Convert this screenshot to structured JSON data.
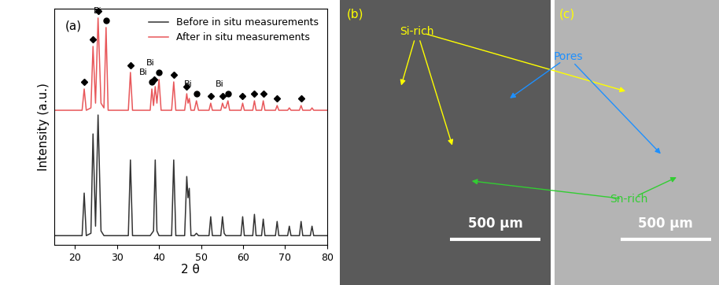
{
  "chart_data": {
    "type": "line",
    "panel_label": "(a)",
    "x_label": "2 θ",
    "y_label": "Intensity (a.u.)",
    "xlim": [
      15,
      80
    ],
    "xticks": [
      20,
      30,
      40,
      50,
      60,
      70,
      80
    ],
    "ylim": [
      0,
      100
    ],
    "tick_labels": "x",
    "legend": "upper right",
    "grid": false,
    "x": [
      15,
      21.7,
      22.2,
      22.7,
      23.8,
      24.3,
      24.9,
      25.5,
      26.2,
      26.9,
      27.4,
      27.9,
      32.7,
      33.2,
      33.7,
      37.9,
      38.3,
      38.7,
      39.1,
      39.5,
      40.0,
      40.5,
      43.0,
      43.5,
      44.0,
      46.1,
      46.6,
      46.9,
      47.2,
      47.6,
      48.4,
      48.9,
      49.4,
      51.9,
      52.3,
      52.7,
      54.7,
      55.1,
      55.5,
      55.9,
      56.4,
      56.8,
      59.5,
      59.9,
      60.3,
      62.3,
      62.7,
      63.1,
      64.4,
      64.8,
      65.2,
      67.7,
      68.1,
      68.5,
      70.6,
      71.0,
      71.4,
      73.4,
      73.8,
      74.2,
      76.0,
      76.4,
      76.8,
      80
    ],
    "series": [
      {
        "name": "Before in situ measurements",
        "color": "#333333",
        "line_style": "solid",
        "values": [
          4,
          4,
          22,
          4,
          5,
          47,
          8,
          55,
          6,
          4,
          4,
          4,
          4,
          36,
          4,
          4,
          5,
          6,
          36,
          6,
          4,
          4,
          4,
          36,
          4,
          4,
          29,
          20,
          24,
          4,
          4,
          5,
          4,
          4,
          12,
          4,
          4,
          12,
          5,
          4,
          4,
          4,
          4,
          12,
          4,
          4,
          13,
          4,
          4,
          11,
          4,
          4,
          10,
          4,
          4,
          8,
          4,
          4,
          10,
          4,
          4,
          8,
          4,
          4
        ]
      },
      {
        "name": "After in situ measurements",
        "color": "#e8575a",
        "line_style": "solid",
        "values": [
          57,
          57,
          66,
          57,
          58,
          84,
          60,
          96,
          60,
          58,
          92,
          57,
          57,
          73,
          57,
          57,
          66,
          59,
          67,
          60,
          70,
          57,
          57,
          69,
          57,
          57,
          64,
          60,
          62,
          57,
          57,
          61,
          57,
          57,
          60,
          57,
          57,
          60,
          58,
          58,
          61,
          57,
          57,
          60,
          57,
          57,
          61,
          57,
          57,
          61,
          57,
          57,
          59,
          57,
          57,
          58,
          57,
          57,
          59,
          57,
          57,
          58,
          57,
          57
        ]
      }
    ],
    "peak_marks": [
      {
        "marker": "diamond",
        "color": "#000000",
        "x": [
          22.2,
          24.3,
          25.5,
          33.2,
          38.9,
          43.5,
          46.6,
          52.3,
          55.1,
          59.9,
          62.7,
          64.8,
          68.1,
          73.8
        ],
        "y": [
          69,
          87,
          99,
          76,
          70,
          72,
          67,
          63,
          63,
          63,
          64,
          64,
          62,
          62
        ]
      },
      {
        "marker": "circle",
        "color": "#000000",
        "label": "Bi",
        "x": [
          27.4,
          38.3,
          40.0,
          48.9,
          56.4
        ],
        "y": [
          95,
          69,
          73,
          64,
          64
        ]
      }
    ]
  },
  "micrographs": [
    {
      "panel_label": "(b)",
      "color": "#5a5a5a",
      "xlim": [
        0,
        1170
      ],
      "ylim": [
        0,
        1580
      ],
      "scale_bar": {
        "value": 500,
        "label": "500 μm"
      }
    },
    {
      "panel_label": "(c)",
      "color": "#b4b4b4",
      "xlim": [
        0,
        913
      ],
      "ylim": [
        0,
        1580
      ],
      "scale_bar": {
        "value": 500,
        "label": "500 μm"
      }
    }
  ],
  "callouts": [
    {
      "text": "Si-rich",
      "color": "#ffff00"
    },
    {
      "text": "Pores",
      "color": "#1e90ff"
    },
    {
      "text": "Sn-rich",
      "color": "#32cd32"
    }
  ]
}
